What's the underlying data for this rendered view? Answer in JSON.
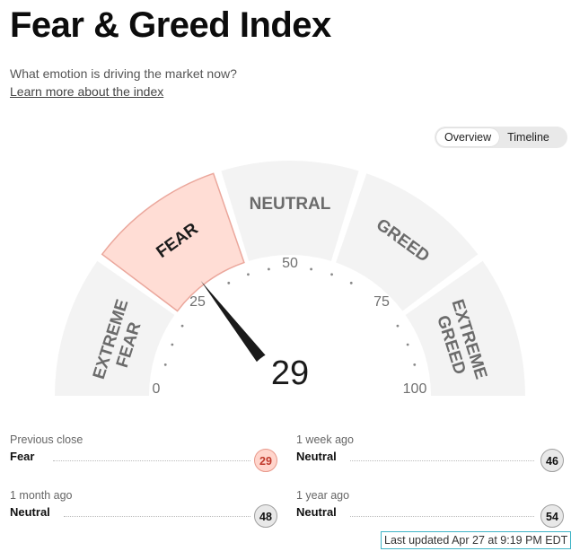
{
  "header": {
    "title": "Fear & Greed Index",
    "subtitle": "What emotion is driving the market now?",
    "learn_more": "Learn more about the index"
  },
  "view_toggle": {
    "options": [
      "Overview",
      "Timeline"
    ],
    "selected": "Overview"
  },
  "gauge": {
    "value": 29,
    "scale_labels": [
      "0",
      "25",
      "50",
      "75",
      "100"
    ],
    "segments": [
      {
        "label_lines": [
          "EXTREME",
          "FEAR"
        ],
        "active": false
      },
      {
        "label_lines": [
          "FEAR"
        ],
        "active": true
      },
      {
        "label_lines": [
          "NEUTRAL"
        ],
        "active": false
      },
      {
        "label_lines": [
          "GREED"
        ],
        "active": false
      },
      {
        "label_lines": [
          "EXTREME",
          "GREED"
        ],
        "active": false
      }
    ],
    "colors": {
      "segment": "#f3f3f3",
      "active_segment": "#ffddd5",
      "active_stroke": "#eba79c",
      "segment_text": "#6b6b6b",
      "active_text": "#1b1b1b",
      "needle": "#1a1a1a"
    }
  },
  "history": [
    {
      "label": "Previous close",
      "rating": "Fear",
      "value": "29",
      "style": "fear"
    },
    {
      "label": "1 week ago",
      "rating": "Neutral",
      "value": "46",
      "style": "neutral"
    },
    {
      "label": "1 month ago",
      "rating": "Neutral",
      "value": "48",
      "style": "neutral"
    },
    {
      "label": "1 year ago",
      "rating": "Neutral",
      "value": "54",
      "style": "neutral"
    }
  ],
  "last_updated": "Last updated Apr 27 at 9:19 PM EDT"
}
